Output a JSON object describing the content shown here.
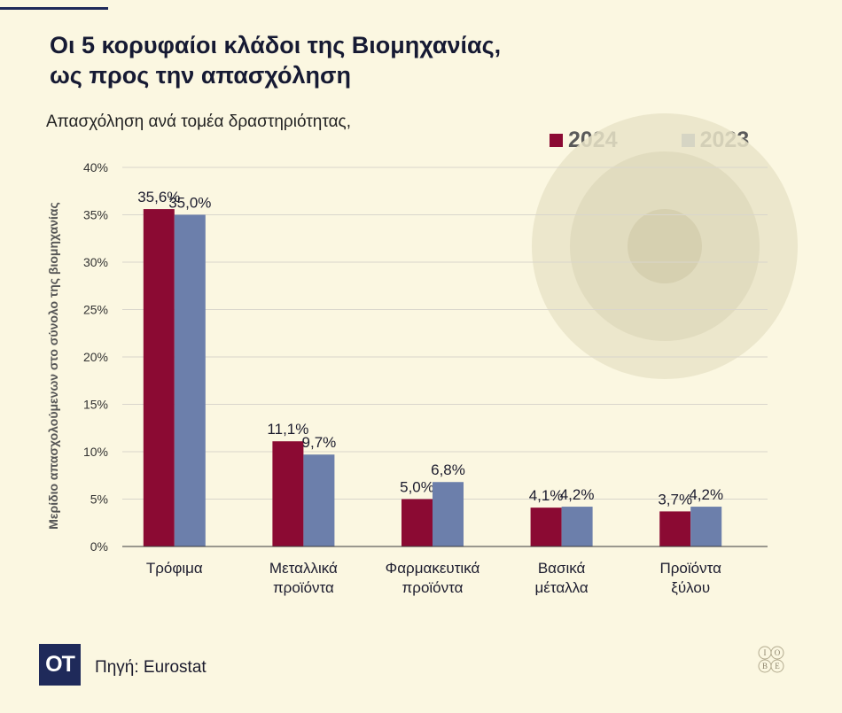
{
  "header": {
    "title_line1": "Οι 5 κορυφαίοι κλάδοι της Βιομηχανίας,",
    "title_line2": "ως προς την απασχόληση"
  },
  "chart_data": {
    "type": "bar",
    "subtitle": "Απασχόληση ανά τομέα δραστηριότητας,",
    "ylabel": "Μερίδιο απασχολούμενων στο σύνολο της βιομηχανίας",
    "xlabel": "",
    "ylim": [
      0,
      40
    ],
    "yticks": [
      0,
      5,
      10,
      15,
      20,
      25,
      30,
      35,
      40
    ],
    "ytick_labels": [
      "0%",
      "5%",
      "10%",
      "15%",
      "20%",
      "25%",
      "30%",
      "35%",
      "40%"
    ],
    "grid": true,
    "legend_position": "top-right",
    "categories": [
      [
        "Τρόφιμα"
      ],
      [
        "Μεταλλικά",
        "προϊόντα"
      ],
      [
        "Φαρμακευτικά",
        "προϊόντα"
      ],
      [
        "Βασικά",
        "μέταλλα"
      ],
      [
        "Προϊόντα",
        "ξύλου"
      ]
    ],
    "series": [
      {
        "name": "2024",
        "color": "#8b0a33",
        "values": [
          35.6,
          11.1,
          5.0,
          4.1,
          3.7
        ],
        "labels": [
          "35,6%",
          "11,1%",
          "5,0%",
          "4,1%",
          "3,7%"
        ]
      },
      {
        "name": "2023",
        "color": "#6c7fab",
        "values": [
          35.0,
          9.7,
          6.8,
          4.2,
          4.2
        ],
        "labels": [
          "35,0%",
          "9,7%",
          "6,8%",
          "4,2%",
          "4,2%"
        ]
      }
    ]
  },
  "footer": {
    "logo_text": "ΟΤ",
    "source": "Πηγή: Eurostat",
    "iobe_letters": [
      "Ι",
      "Ο",
      "Β",
      "Ε"
    ]
  },
  "colors": {
    "background": "#fbf7e1",
    "grid": "#d9d6cc",
    "axis": "#3a3a3a",
    "brand": "#1f2a5a",
    "decor": "#e9e4c8"
  }
}
